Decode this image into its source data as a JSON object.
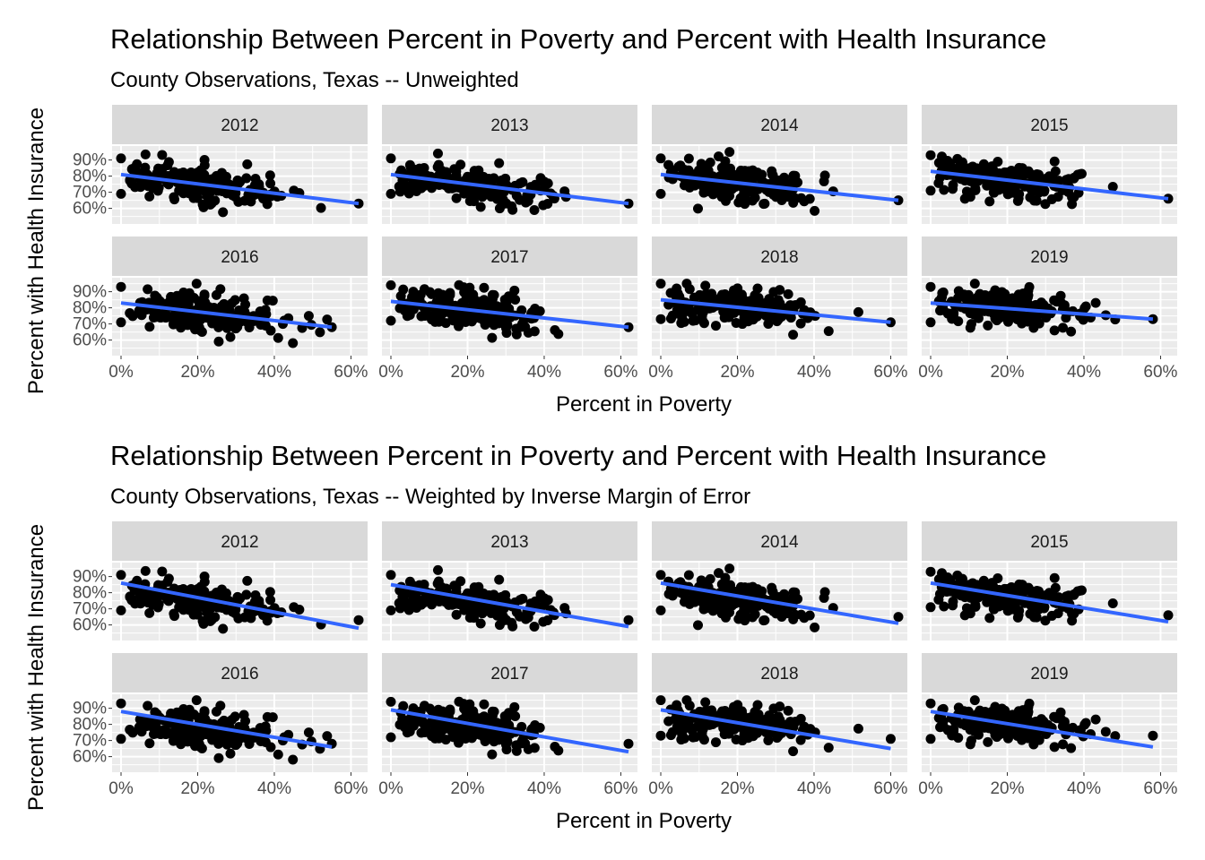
{
  "chart_data": [
    {
      "type": "scatter",
      "title": "Relationship Between Percent in Poverty and Percent with Health Insurance",
      "subtitle": "County Observations, Texas -- Unweighted",
      "xlabel": "Percent in Poverty",
      "ylabel": "Percent with Health Insurance",
      "xlim": [
        0,
        0.62
      ],
      "ylim": [
        0.52,
        0.97
      ],
      "x_ticks": [
        "0%",
        "20%",
        "40%",
        "60%"
      ],
      "y_ticks": [
        "60%",
        "70%",
        "80%",
        "90%"
      ],
      "grid": true,
      "facets": [
        {
          "label": "2012",
          "fit": {
            "x": [
              0.0,
              0.62
            ],
            "y": [
              0.81,
              0.63
            ]
          }
        },
        {
          "label": "2013",
          "fit": {
            "x": [
              0.0,
              0.62
            ],
            "y": [
              0.81,
              0.63
            ]
          }
        },
        {
          "label": "2014",
          "fit": {
            "x": [
              0.0,
              0.62
            ],
            "y": [
              0.81,
              0.65
            ]
          }
        },
        {
          "label": "2015",
          "fit": {
            "x": [
              0.0,
              0.62
            ],
            "y": [
              0.83,
              0.66
            ]
          }
        },
        {
          "label": "2016",
          "fit": {
            "x": [
              0.0,
              0.55
            ],
            "y": [
              0.83,
              0.68
            ]
          }
        },
        {
          "label": "2017",
          "fit": {
            "x": [
              0.0,
              0.62
            ],
            "y": [
              0.84,
              0.68
            ]
          }
        },
        {
          "label": "2018",
          "fit": {
            "x": [
              0.0,
              0.6
            ],
            "y": [
              0.85,
              0.71
            ]
          }
        },
        {
          "label": "2019",
          "fit": {
            "x": [
              0.0,
              0.58
            ],
            "y": [
              0.83,
              0.73
            ]
          }
        }
      ]
    },
    {
      "type": "scatter",
      "title": "Relationship Between Percent in Poverty and Percent with Health Insurance",
      "subtitle": "County Observations, Texas -- Weighted by Inverse Margin of Error",
      "xlabel": "Percent in Poverty",
      "ylabel": "Percent with Health Insurance",
      "xlim": [
        0,
        0.62
      ],
      "ylim": [
        0.52,
        0.97
      ],
      "x_ticks": [
        "0%",
        "20%",
        "40%",
        "60%"
      ],
      "y_ticks": [
        "60%",
        "70%",
        "80%",
        "90%"
      ],
      "grid": true,
      "facets": [
        {
          "label": "2012",
          "fit": {
            "x": [
              0.0,
              0.62
            ],
            "y": [
              0.86,
              0.58
            ]
          }
        },
        {
          "label": "2013",
          "fit": {
            "x": [
              0.0,
              0.62
            ],
            "y": [
              0.85,
              0.59
            ]
          }
        },
        {
          "label": "2014",
          "fit": {
            "x": [
              0.0,
              0.62
            ],
            "y": [
              0.86,
              0.61
            ]
          }
        },
        {
          "label": "2015",
          "fit": {
            "x": [
              0.0,
              0.62
            ],
            "y": [
              0.86,
              0.62
            ]
          }
        },
        {
          "label": "2016",
          "fit": {
            "x": [
              0.0,
              0.55
            ],
            "y": [
              0.88,
              0.66
            ]
          }
        },
        {
          "label": "2017",
          "fit": {
            "x": [
              0.0,
              0.62
            ],
            "y": [
              0.89,
              0.63
            ]
          }
        },
        {
          "label": "2018",
          "fit": {
            "x": [
              0.0,
              0.6
            ],
            "y": [
              0.89,
              0.65
            ]
          }
        },
        {
          "label": "2019",
          "fit": {
            "x": [
              0.0,
              0.58
            ],
            "y": [
              0.88,
              0.66
            ]
          }
        }
      ]
    }
  ],
  "colors": {
    "points": "#000000",
    "fit_line": "#3366ff",
    "panel_bg": "#ebebeb",
    "strip_bg": "#d9d9d9",
    "grid": "#ffffff",
    "tick_text": "#4d4d4d"
  }
}
